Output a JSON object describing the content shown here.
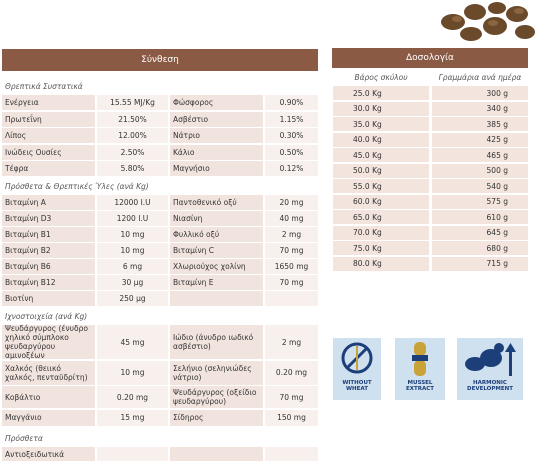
{
  "composition": {
    "title": "Σύνθεση",
    "sections": [
      {
        "title": "Θρεπτικά Συστατικά",
        "rows": [
          [
            "Ενέργεια",
            "15.55 MJ/Kg",
            "Φώσφορος",
            "0.90%"
          ],
          [
            "Πρωτεΐνη",
            "21.50%",
            "Ασβέστιο",
            "1.15%"
          ],
          [
            "Λίπος",
            "12.00%",
            "Νάτριο",
            "0.30%"
          ],
          [
            "Ινώδεις Ουσίες",
            "2.50%",
            "Κάλιο",
            "0.50%"
          ],
          [
            "Τέφρα",
            "5.80%",
            "Μαγνήσιο",
            "0.12%"
          ]
        ]
      },
      {
        "title": "Πρόσθετα & Θρεπτικές Ύλες (ανά Kg)",
        "rows": [
          [
            "Βιταμίνη Α",
            "12000 I.U",
            "Παντοθενικό οξύ",
            "20 mg"
          ],
          [
            "Βιταμίνη D3",
            "1200 I.U",
            "Νιασίνη",
            "40 mg"
          ],
          [
            "Βιταμίνη Β1",
            "10 mg",
            "Φυλλικό οξύ",
            "2 mg"
          ],
          [
            "Βιταμίνη Β2",
            "10 mg",
            "Βιταμίνη C",
            "70 mg"
          ],
          [
            "Βιταμίνη Β6",
            "6 mg",
            "Χλωριούχος χολίνη",
            "1650 mg"
          ],
          [
            "Βιταμίνη Β12",
            "30 μg",
            "Βιταμίνη Ε",
            "70 mg"
          ],
          [
            "Βιοτίνη",
            "250 μg"
          ]
        ]
      },
      {
        "title": "Ιχνοστοιχεία (ανά Kg)",
        "rows": [
          [
            "Ψευδάργυρος (ένυδρο χηλικό σύμπλοκο ψευδαργύρου αμινοξέων",
            "45 mg",
            "Ιώδιο (άνυδρο ιωδικό ασβέστιο)",
            "2 mg"
          ],
          [
            "Χαλκός (θειικό χαλκός, πενταϋδρίτη)",
            "10 mg",
            "Σελήνιο (σεληνιώδες νάτριο)",
            "0.20 mg"
          ],
          [
            "Κοβάλτιο",
            "0.20 mg",
            "Ψευδάργυρος (οξείδιο ψευδαργύρου)",
            "70 mg"
          ],
          [
            "Μαγγάνιο",
            "15 mg",
            "Σίδηρος",
            "150 mg"
          ]
        ]
      },
      {
        "title": "Πρόσθετα",
        "rows": [
          [
            "Αντιοξειδωτικά"
          ]
        ]
      }
    ]
  },
  "dosage": {
    "title": "Δοσολογία",
    "columns": [
      "Βάρος σκύλου",
      "Γραμμάρια ανά ημέρα"
    ],
    "rows": [
      [
        "25.0 Kg",
        "300 g"
      ],
      [
        "30.0 Kg",
        "340 g"
      ],
      [
        "35.0 Kg",
        "385 g"
      ],
      [
        "40.0 Kg",
        "425 g"
      ],
      [
        "45.0 Kg",
        "465 g"
      ],
      [
        "50.0 Kg",
        "500 g"
      ],
      [
        "55.0 Kg",
        "540 g"
      ],
      [
        "60.0 Kg",
        "575 g"
      ],
      [
        "65.0 Kg",
        "610 g"
      ],
      [
        "70.0 Kg",
        "645 g"
      ],
      [
        "75.0 Kg",
        "680 g"
      ],
      [
        "80.0 Kg",
        "715 g"
      ]
    ]
  },
  "badges": [
    "WITHOUT WHEAT",
    "MUSSEL EXTRACT",
    "HARMONIC DEVELOPMENT"
  ]
}
